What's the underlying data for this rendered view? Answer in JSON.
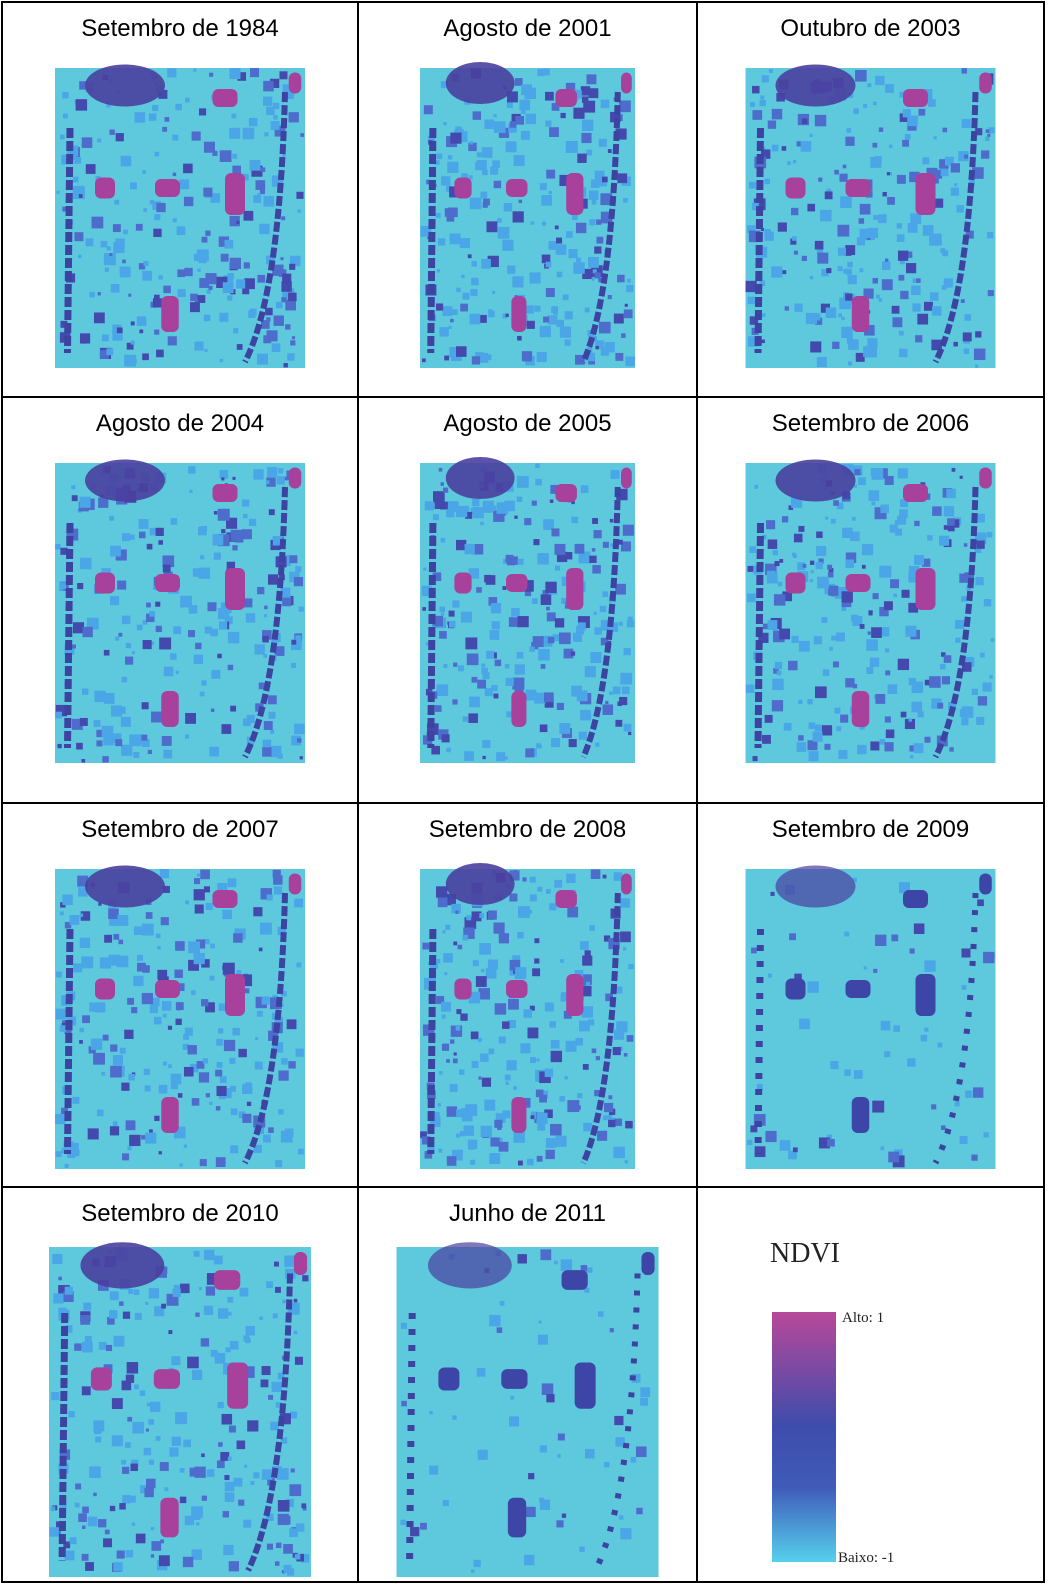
{
  "panels": [
    {
      "label": "Setembro de 1984"
    },
    {
      "label": "Agosto de 2001"
    },
    {
      "label": "Outubro de 2003"
    },
    {
      "label": "Agosto de 2004"
    },
    {
      "label": "Agosto de 2005"
    },
    {
      "label": "Setembro de 2006"
    },
    {
      "label": "Setembro de 2007"
    },
    {
      "label": "Setembro de 2008"
    },
    {
      "label": "Setembro de 2009"
    },
    {
      "label": "Setembro de 2010"
    },
    {
      "label": "Junho de 2011"
    }
  ],
  "legend": {
    "title": "NDVI",
    "high": "Alto: 1",
    "low": "Baixo: -1"
  }
}
